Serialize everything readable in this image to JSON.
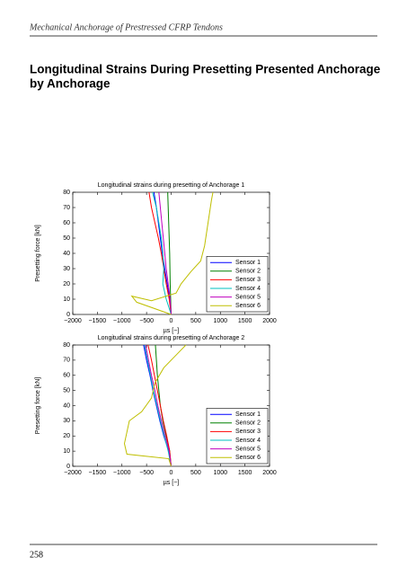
{
  "header": "Mechanical Anchorage of Prestressed CFRP Tendons",
  "heading": [
    "Longitudinal Strains During Presetting Presented Anchorage",
    "by Anchorage"
  ],
  "page_number": "258",
  "chart_data": [
    {
      "type": "line",
      "title": "Longitudinal strains during presetting of Anchorage 1",
      "x_label": "µs [−]",
      "y_label": "Presetting force [kN]",
      "xlim": [
        -2000,
        2000
      ],
      "ylim": [
        0,
        80
      ],
      "xticks": [
        {
          "value": -2000,
          "label": "−2000"
        },
        {
          "value": -1500,
          "label": "−1500"
        },
        {
          "value": -1000,
          "label": "−1000"
        },
        {
          "value": -500,
          "label": "−500"
        },
        0,
        500,
        1000,
        1500,
        2000
      ],
      "yticks": [
        0,
        10,
        20,
        30,
        40,
        50,
        60,
        70,
        80
      ],
      "legend": "lower right",
      "series": [
        {
          "name": "Sensor 1",
          "color": "#0000ff",
          "x": [
            0,
            -30,
            -80,
            -130,
            -180,
            -220,
            -260,
            -300,
            -350
          ],
          "values": [
            0,
            10,
            20,
            30,
            40,
            50,
            60,
            70,
            80
          ]
        },
        {
          "name": "Sensor 2",
          "color": "#008000",
          "x": [
            0,
            -10,
            -20,
            -30,
            -50,
            -70
          ],
          "values": [
            0,
            10,
            20,
            40,
            60,
            80
          ]
        },
        {
          "name": "Sensor 3",
          "color": "#ff0000",
          "x": [
            0,
            -40,
            -100,
            -150,
            -200,
            -260,
            -330,
            -400,
            -450
          ],
          "values": [
            0,
            10,
            20,
            30,
            40,
            50,
            60,
            70,
            80
          ]
        },
        {
          "name": "Sensor 4",
          "color": "#00bfbf",
          "x": [
            0,
            -100,
            -170,
            -150,
            -170,
            -200,
            -250,
            -300,
            -380
          ],
          "values": [
            0,
            10,
            20,
            30,
            40,
            50,
            60,
            70,
            80
          ]
        },
        {
          "name": "Sensor 5",
          "color": "#bf00bf",
          "x": [
            0,
            -20,
            -60,
            -100,
            -130,
            -160,
            -190,
            -220,
            -250
          ],
          "values": [
            0,
            10,
            20,
            30,
            40,
            50,
            60,
            70,
            80
          ]
        },
        {
          "name": "Sensor 6",
          "color": "#bfbf00",
          "x": [
            0,
            -700,
            -800,
            -400,
            100,
            200,
            400,
            600,
            680,
            750,
            820,
            850
          ],
          "values": [
            0,
            8,
            12,
            9,
            14,
            20,
            28,
            35,
            45,
            60,
            75,
            80
          ]
        }
      ]
    },
    {
      "type": "line",
      "title": "Longitudinal strains during presetting of Anchorage 2",
      "x_label": "µs [−]",
      "y_label": "Presetting force [kN]",
      "xlim": [
        -2000,
        2000
      ],
      "ylim": [
        0,
        80
      ],
      "xticks": [
        {
          "value": -2000,
          "label": "−2000"
        },
        {
          "value": -1500,
          "label": "−1500"
        },
        {
          "value": -1000,
          "label": "−1000"
        },
        {
          "value": -500,
          "label": "−500"
        },
        0,
        500,
        1000,
        1500,
        2000
      ],
      "yticks": [
        0,
        10,
        20,
        30,
        40,
        50,
        60,
        70,
        80
      ],
      "legend": "lower right",
      "series": [
        {
          "name": "Sensor 1",
          "color": "#0000ff",
          "x": [
            0,
            -50,
            -150,
            -230,
            -300,
            -370,
            -430,
            -500,
            -560
          ],
          "values": [
            0,
            10,
            20,
            30,
            40,
            50,
            60,
            70,
            80
          ]
        },
        {
          "name": "Sensor 2",
          "color": "#008000",
          "x": [
            0,
            -30,
            -100,
            -170,
            -220,
            -250,
            -280,
            -300,
            -320
          ],
          "values": [
            0,
            10,
            20,
            30,
            40,
            50,
            60,
            70,
            80
          ]
        },
        {
          "name": "Sensor 3",
          "color": "#ff0000",
          "x": [
            0,
            -30,
            -90,
            -160,
            -220,
            -280,
            -340,
            -400,
            -470
          ],
          "values": [
            0,
            10,
            20,
            30,
            40,
            50,
            60,
            70,
            80
          ]
        },
        {
          "name": "Sensor 4",
          "color": "#00bfbf",
          "x": [
            0,
            -60,
            -140,
            -220,
            -290,
            -360,
            -420,
            -480,
            -540
          ],
          "values": [
            0,
            10,
            20,
            30,
            40,
            50,
            60,
            70,
            80
          ]
        },
        {
          "name": "Sensor 5",
          "color": "#bf00bf",
          "x": [
            0,
            -40,
            -120,
            -200,
            -270,
            -330,
            -400,
            -460,
            -520
          ],
          "values": [
            0,
            10,
            20,
            30,
            40,
            50,
            60,
            70,
            80
          ]
        },
        {
          "name": "Sensor 6",
          "color": "#bfbf00",
          "x": [
            0,
            -50,
            -900,
            -950,
            -850,
            -600,
            -400,
            -330,
            -150,
            150,
            300
          ],
          "values": [
            0,
            5,
            8,
            15,
            30,
            36,
            45,
            55,
            65,
            75,
            80
          ]
        }
      ]
    }
  ]
}
